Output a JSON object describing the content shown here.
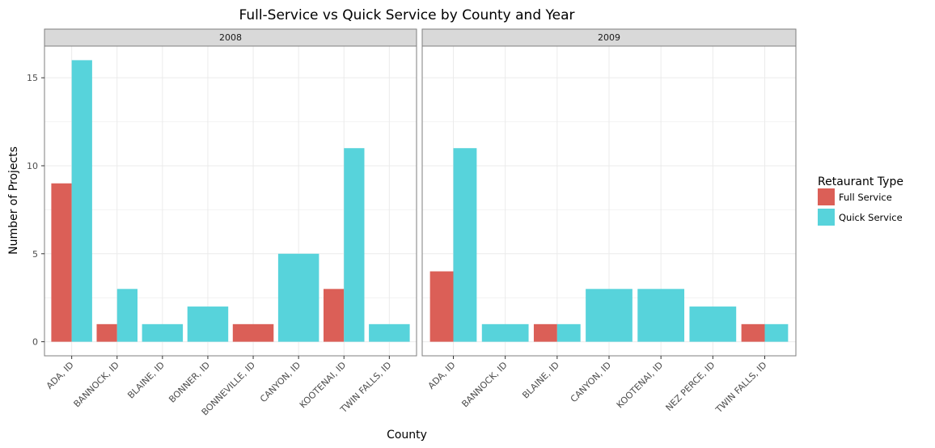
{
  "chart_data": {
    "type": "bar",
    "title": "Full-Service vs Quick Service by County and Year",
    "xlabel": "County",
    "ylabel": "Number of Projects",
    "ylim": [
      -0.8,
      16.8
    ],
    "yticks": [
      0,
      5,
      10,
      15
    ],
    "grid": true,
    "legend": {
      "title": "Retaurant Type",
      "placement": "right",
      "entries": [
        {
          "name": "Full Service",
          "color": "#db5f57"
        },
        {
          "name": "Quick Service",
          "color": "#57d3db"
        }
      ]
    },
    "facets": [
      {
        "label": "2008",
        "categories": [
          "ADA, ID",
          "BANNOCK, ID",
          "BLAINE, ID",
          "BONNER, ID",
          "BONNEVILLE, ID",
          "CANYON, ID",
          "KOOTENAI, ID",
          "TWIN FALLS, ID"
        ],
        "series": [
          {
            "name": "Full Service",
            "values": [
              9,
              1,
              null,
              null,
              1,
              null,
              3,
              null
            ]
          },
          {
            "name": "Quick Service",
            "values": [
              16,
              3,
              1,
              2,
              null,
              5,
              11,
              1
            ]
          }
        ]
      },
      {
        "label": "2009",
        "categories": [
          "ADA, ID",
          "BANNOCK, ID",
          "BLAINE, ID",
          "CANYON, ID",
          "KOOTENAI, ID",
          "NEZ PERCE, ID",
          "TWIN FALLS, ID"
        ],
        "series": [
          {
            "name": "Full Service",
            "values": [
              4,
              null,
              1,
              null,
              null,
              null,
              1
            ]
          },
          {
            "name": "Quick Service",
            "values": [
              11,
              1,
              1,
              3,
              3,
              2,
              1
            ]
          }
        ]
      }
    ]
  }
}
